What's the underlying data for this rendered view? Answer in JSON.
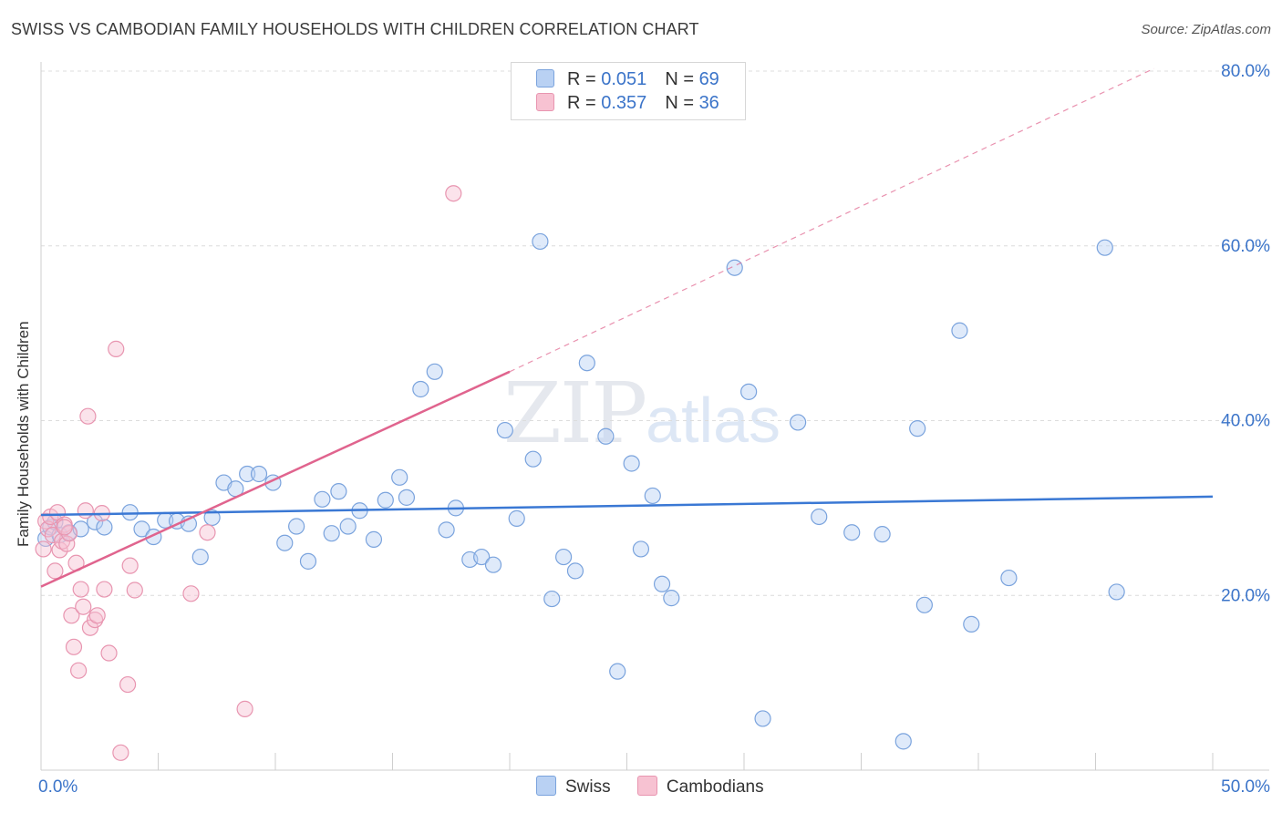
{
  "title": "SWISS VS CAMBODIAN FAMILY HOUSEHOLDS WITH CHILDREN CORRELATION CHART",
  "source": "Source: ZipAtlas.com",
  "watermark": {
    "zip": "ZIP",
    "atlas": "atlas"
  },
  "colors": {
    "swiss": "#3a78d4",
    "swiss_fill": "#b9d1f3",
    "cambodian": "#e0648e",
    "cambodian_fill": "#f7c2d2",
    "axis_text": "#3b74c9"
  },
  "legend": {
    "rows": [
      {
        "r_label": "R = ",
        "r_value": "0.051",
        "n_label": "N = ",
        "n_value": "69"
      },
      {
        "r_label": "R = ",
        "r_value": "0.357",
        "n_label": "N = ",
        "n_value": "36"
      }
    ]
  },
  "bottom_legend": [
    "Swiss",
    "Cambodians"
  ],
  "chart_data": {
    "type": "scatter",
    "title": "SWISS VS CAMBODIAN FAMILY HOUSEHOLDS WITH CHILDREN CORRELATION CHART",
    "xlabel": "",
    "ylabel": "Family Households with Children",
    "xlim": [
      0,
      50
    ],
    "ylim": [
      0,
      80
    ],
    "x_tick_labels": [
      "0.0%",
      "50.0%"
    ],
    "y_ticks": [
      20,
      40,
      60,
      80
    ],
    "y_tick_labels": [
      "20.0%",
      "40.0%",
      "60.0%",
      "80.0%"
    ],
    "grid": true,
    "series": [
      {
        "name": "Swiss",
        "r": 0.051,
        "n": 69,
        "trend": {
          "x0": 0,
          "y0": 29.2,
          "x1": 50,
          "y1": 31.3,
          "dashed_extension": false
        },
        "points": [
          [
            0.2,
            26.5
          ],
          [
            0.4,
            27.8
          ],
          [
            0.6,
            28.4
          ],
          [
            0.8,
            26.9
          ],
          [
            1.2,
            27.2
          ],
          [
            1.7,
            27.6
          ],
          [
            2.3,
            28.4
          ],
          [
            2.7,
            27.8
          ],
          [
            3.8,
            29.5
          ],
          [
            4.3,
            27.6
          ],
          [
            4.8,
            26.7
          ],
          [
            5.3,
            28.6
          ],
          [
            5.8,
            28.5
          ],
          [
            6.3,
            28.2
          ],
          [
            6.8,
            24.4
          ],
          [
            7.3,
            28.9
          ],
          [
            7.8,
            32.9
          ],
          [
            8.3,
            32.2
          ],
          [
            8.8,
            33.9
          ],
          [
            9.3,
            33.9
          ],
          [
            9.9,
            32.9
          ],
          [
            10.4,
            26.0
          ],
          [
            10.9,
            27.9
          ],
          [
            11.4,
            23.9
          ],
          [
            12.0,
            31.0
          ],
          [
            12.4,
            27.1
          ],
          [
            12.7,
            31.9
          ],
          [
            13.1,
            27.9
          ],
          [
            13.6,
            29.7
          ],
          [
            14.2,
            26.4
          ],
          [
            14.7,
            30.9
          ],
          [
            15.3,
            33.5
          ],
          [
            15.6,
            31.2
          ],
          [
            16.2,
            43.6
          ],
          [
            16.8,
            45.6
          ],
          [
            17.3,
            27.5
          ],
          [
            17.7,
            30.0
          ],
          [
            18.3,
            24.1
          ],
          [
            18.8,
            24.4
          ],
          [
            19.3,
            23.5
          ],
          [
            19.8,
            38.9
          ],
          [
            20.3,
            28.8
          ],
          [
            21.0,
            35.6
          ],
          [
            21.3,
            60.5
          ],
          [
            21.8,
            19.6
          ],
          [
            22.3,
            24.4
          ],
          [
            22.8,
            22.8
          ],
          [
            23.3,
            46.6
          ],
          [
            24.1,
            38.2
          ],
          [
            24.6,
            11.3
          ],
          [
            25.2,
            35.1
          ],
          [
            25.6,
            25.3
          ],
          [
            26.1,
            31.4
          ],
          [
            26.5,
            21.3
          ],
          [
            26.9,
            19.7
          ],
          [
            29.6,
            57.5
          ],
          [
            30.2,
            43.3
          ],
          [
            30.8,
            5.9
          ],
          [
            32.3,
            39.8
          ],
          [
            33.2,
            29.0
          ],
          [
            34.6,
            27.2
          ],
          [
            35.9,
            27.0
          ],
          [
            37.4,
            39.1
          ],
          [
            37.7,
            18.9
          ],
          [
            39.2,
            50.3
          ],
          [
            39.7,
            16.7
          ],
          [
            41.3,
            22.0
          ],
          [
            45.4,
            59.8
          ],
          [
            45.9,
            20.4
          ],
          [
            36.8,
            3.3
          ]
        ]
      },
      {
        "name": "Cambodians",
        "r": 0.357,
        "n": 36,
        "trend": {
          "x0": 0,
          "y0": 21.0,
          "x1": 20,
          "y1": 45.6,
          "dashed_to_x": 47.5,
          "dashed_to_y": 80.3
        },
        "points": [
          [
            0.1,
            25.3
          ],
          [
            0.2,
            28.5
          ],
          [
            0.3,
            27.6
          ],
          [
            0.4,
            29.0
          ],
          [
            0.5,
            26.9
          ],
          [
            0.6,
            22.8
          ],
          [
            0.7,
            29.5
          ],
          [
            0.8,
            25.2
          ],
          [
            0.9,
            26.2
          ],
          [
            1.0,
            28.1
          ],
          [
            1.1,
            25.9
          ],
          [
            1.2,
            27.1
          ],
          [
            1.3,
            17.7
          ],
          [
            1.4,
            14.1
          ],
          [
            1.5,
            23.7
          ],
          [
            1.6,
            11.4
          ],
          [
            1.7,
            20.7
          ],
          [
            1.8,
            18.7
          ],
          [
            1.9,
            29.7
          ],
          [
            2.0,
            40.5
          ],
          [
            2.1,
            16.3
          ],
          [
            2.3,
            17.2
          ],
          [
            2.4,
            17.7
          ],
          [
            2.6,
            29.4
          ],
          [
            2.7,
            20.7
          ],
          [
            2.9,
            13.4
          ],
          [
            3.2,
            48.2
          ],
          [
            3.4,
            2.0
          ],
          [
            3.7,
            9.8
          ],
          [
            3.8,
            23.4
          ],
          [
            4.0,
            20.6
          ],
          [
            6.4,
            20.2
          ],
          [
            7.1,
            27.2
          ],
          [
            8.7,
            7.0
          ],
          [
            17.6,
            66.0
          ],
          [
            1.0,
            27.8
          ]
        ]
      }
    ]
  }
}
